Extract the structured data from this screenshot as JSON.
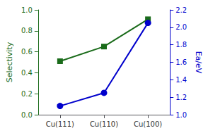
{
  "chart_data": {
    "type": "line",
    "categories": [
      "Cu(111)",
      "Cu(110)",
      "Cu(100)"
    ],
    "ylabel": "Selectivity",
    "y2label": "Ea/eV",
    "ylim": [
      0.0,
      1.0
    ],
    "yticks": [
      {
        "value": 0.0,
        "label": "0.0"
      },
      0.2,
      0.4,
      0.6,
      0.8,
      {
        "value": 1.0,
        "label": "1.0"
      }
    ],
    "y2lim": [
      1.0,
      2.2
    ],
    "y2ticks": [
      {
        "value": 1.0,
        "label": "1.0"
      },
      1.2,
      1.4,
      1.6,
      1.8,
      {
        "value": 2.0,
        "label": "2.0"
      },
      2.2
    ],
    "grid": false,
    "series": [
      {
        "color": "#1a6b1a",
        "marker": "square",
        "values": [
          0.51,
          0.65,
          0.91
        ]
      },
      {
        "color": "#0000cc",
        "marker": "circle",
        "axis": "y2",
        "values": [
          1.1,
          1.25,
          2.05
        ]
      }
    ]
  }
}
